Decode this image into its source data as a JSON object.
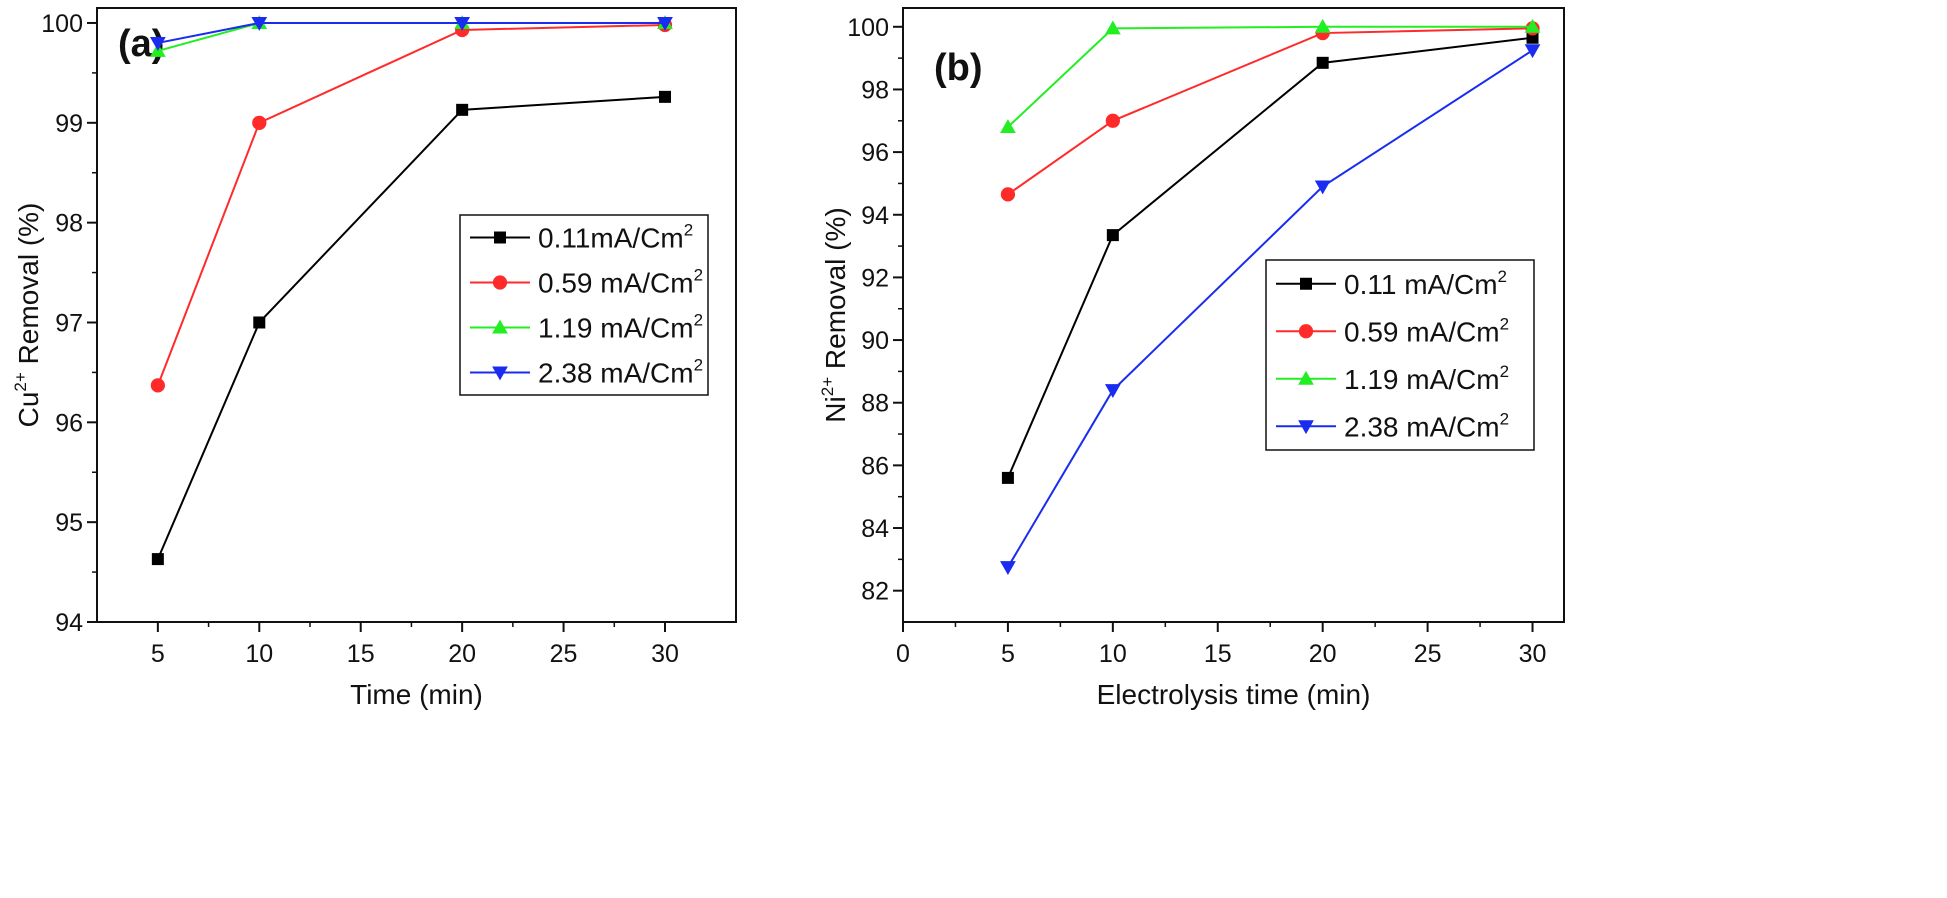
{
  "chart_data": [
    {
      "type": "line",
      "panel_label": "(a)",
      "xlabel": "Time (min)",
      "ylabel": {
        "prefix": "Cu",
        "sup": "2+",
        "suffix": " Removal (%)"
      },
      "xlim": [
        2,
        33.5
      ],
      "ylim": [
        94,
        100.15
      ],
      "xticks": [
        5,
        10,
        15,
        20,
        25,
        30
      ],
      "yticks": [
        94,
        95,
        96,
        97,
        98,
        99,
        100
      ],
      "x": [
        5,
        10,
        20,
        30
      ],
      "legend_position": "center-right",
      "series": [
        {
          "name": "0.11mA/Cm",
          "name_sup": "2",
          "color": "#000000",
          "marker": "square",
          "values": [
            94.63,
            97.0,
            99.13,
            99.26
          ]
        },
        {
          "name": "0.59 mA/Cm",
          "name_sup": "2",
          "color": "#ff2a2a",
          "marker": "circle",
          "values": [
            96.37,
            99.0,
            99.93,
            99.98
          ]
        },
        {
          "name": "1.19 mA/Cm",
          "name_sup": "2",
          "color": "#22ee22",
          "marker": "triangle-up",
          "values": [
            99.72,
            100.0,
            100.0,
            100.0
          ]
        },
        {
          "name": "2.38 mA/Cm",
          "name_sup": "2",
          "color": "#1a2cf0",
          "marker": "triangle-down",
          "values": [
            99.8,
            100.0,
            100.0,
            100.0
          ]
        }
      ]
    },
    {
      "type": "line",
      "panel_label": "(b)",
      "xlabel": "Electrolysis time (min)",
      "ylabel": {
        "prefix": "Ni",
        "sup": "2+",
        "suffix": " Removal (%)"
      },
      "xlim": [
        0,
        31.5
      ],
      "ylim": [
        81,
        100.6
      ],
      "xticks": [
        0,
        5,
        10,
        15,
        20,
        25,
        30
      ],
      "yticks": [
        82,
        84,
        86,
        88,
        90,
        92,
        94,
        96,
        98,
        100
      ],
      "x": [
        5,
        10,
        20,
        30
      ],
      "legend_position": "center-right",
      "series": [
        {
          "name": "0.11 mA/Cm",
          "name_sup": "2",
          "color": "#000000",
          "marker": "square",
          "values": [
            85.6,
            93.35,
            98.85,
            99.65
          ]
        },
        {
          "name": "0.59 mA/Cm",
          "name_sup": "2",
          "color": "#ff2a2a",
          "marker": "circle",
          "values": [
            94.65,
            97.0,
            99.8,
            99.95
          ]
        },
        {
          "name": "1.19 mA/Cm",
          "name_sup": "2",
          "color": "#22ee22",
          "marker": "triangle-up",
          "values": [
            96.8,
            99.95,
            100.0,
            100.0
          ]
        },
        {
          "name": "2.38 mA/Cm",
          "name_sup": "2",
          "color": "#1a2cf0",
          "marker": "triangle-down",
          "values": [
            82.75,
            88.4,
            94.9,
            99.25
          ]
        }
      ]
    }
  ]
}
